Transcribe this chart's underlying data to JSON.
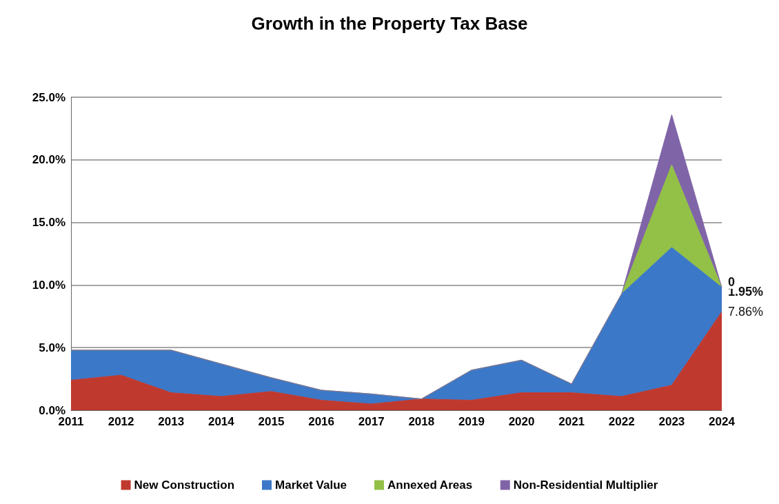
{
  "chart_data": {
    "type": "area",
    "title": "Growth in the Property Tax Base",
    "stacked": true,
    "categories": [
      "2011",
      "2012",
      "2013",
      "2014",
      "2015",
      "2016",
      "2017",
      "2018",
      "2019",
      "2020",
      "2021",
      "2022",
      "2023",
      "2024"
    ],
    "series": [
      {
        "name": "New Construction",
        "color": "#c0392e",
        "values": [
          2.4,
          2.8,
          1.4,
          1.1,
          1.5,
          0.8,
          0.5,
          0.9,
          0.8,
          1.4,
          1.4,
          1.1,
          2.0,
          7.86
        ],
        "value_labels": [
          null,
          null,
          null,
          null,
          null,
          null,
          null,
          null,
          null,
          null,
          null,
          null,
          null,
          "7.86%"
        ]
      },
      {
        "name": "Market Value",
        "color": "#3b78c8",
        "values": [
          2.4,
          2.0,
          3.4,
          2.6,
          1.1,
          0.8,
          0.8,
          0,
          2.4,
          2.6,
          0.7,
          8.2,
          11.0,
          1.95
        ],
        "value_labels": [
          null,
          null,
          null,
          null,
          null,
          null,
          null,
          null,
          null,
          null,
          null,
          null,
          null,
          "1.95%"
        ]
      },
      {
        "name": "Annexed Areas",
        "color": "#93c047",
        "values": [
          0,
          0,
          0,
          0,
          0,
          0,
          0,
          0,
          0,
          0,
          0,
          0,
          6.6,
          0
        ],
        "value_labels": [
          null,
          null,
          null,
          null,
          null,
          null,
          null,
          null,
          null,
          null,
          null,
          null,
          null,
          "0"
        ]
      },
      {
        "name": "Non-Residential Multiplier",
        "color": "#8064a8",
        "values": [
          0,
          0,
          0,
          0,
          0,
          0,
          0,
          0,
          0,
          0,
          0,
          0,
          4.0,
          0
        ]
      }
    ],
    "ylim": [
      0,
      25
    ],
    "yticks": [
      {
        "value": 0,
        "label": "0.0%"
      },
      {
        "value": 5,
        "label": "5.0%"
      },
      {
        "value": 10,
        "label": "10.0%"
      },
      {
        "value": 15,
        "label": "15.0%"
      },
      {
        "value": 20,
        "label": "20.0%"
      },
      {
        "value": 25,
        "label": "25.0%"
      }
    ],
    "grid": "y",
    "legend": "bottom"
  }
}
